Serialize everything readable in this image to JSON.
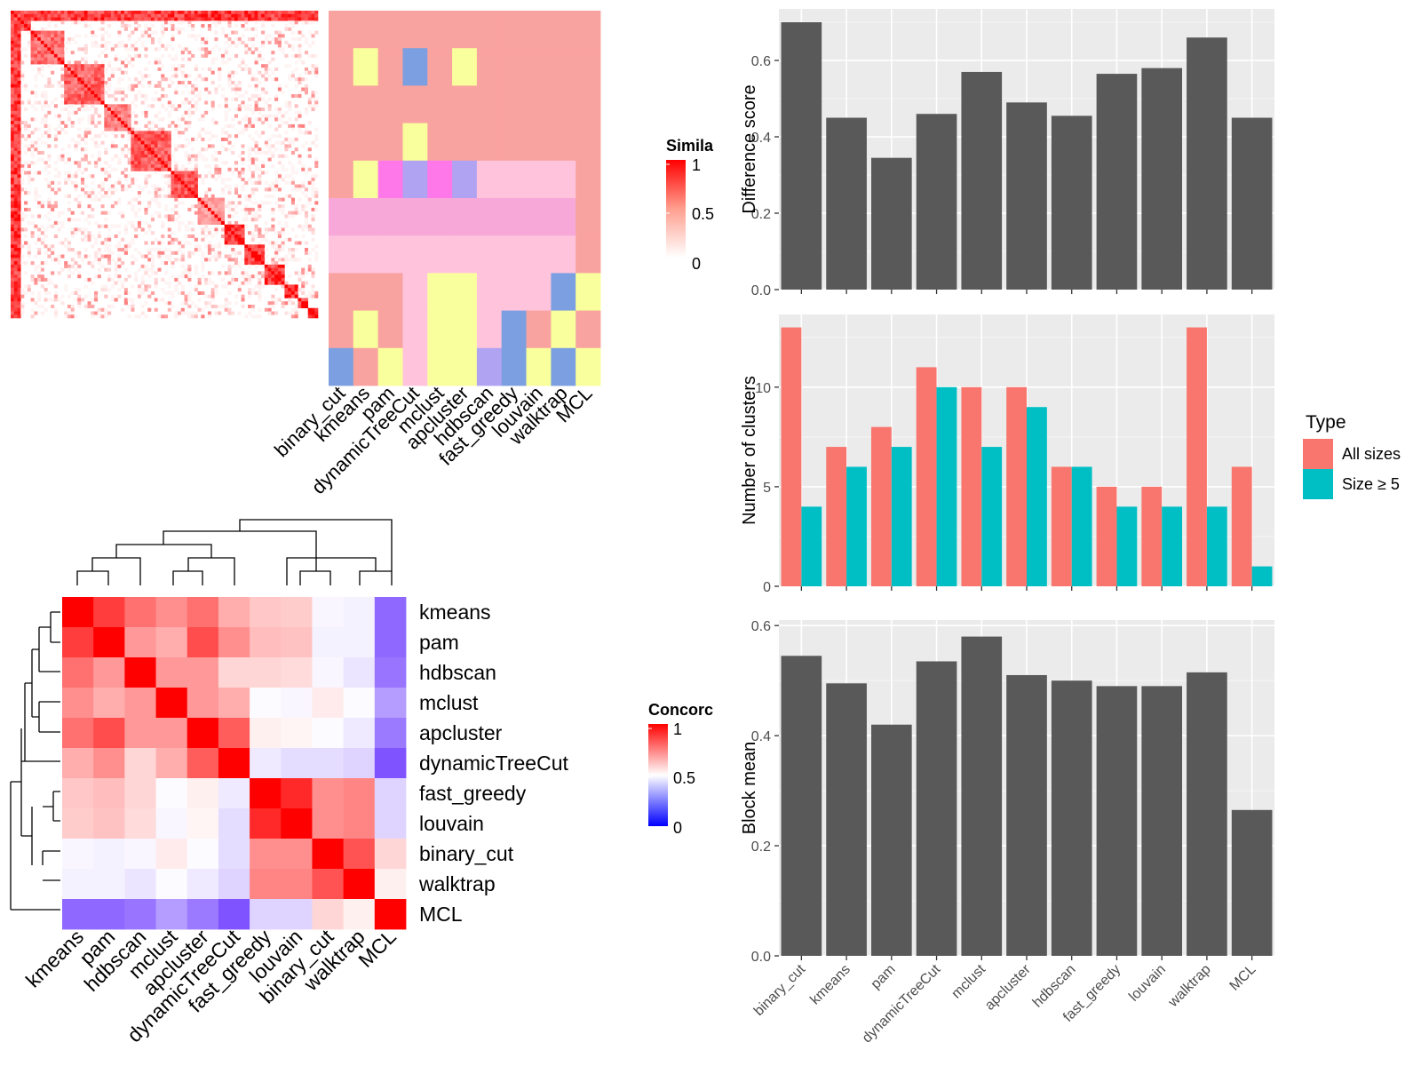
{
  "methods_x": [
    "binary_cut",
    "kmeans",
    "pam",
    "dynamicTreeCut",
    "mclust",
    "apcluster",
    "hdbscan",
    "fast_greedy",
    "louvain",
    "walktrap",
    "MCL"
  ],
  "similarity_heatmap": {
    "legend_title": "Simila",
    "legend_ticks": [
      "1",
      "0.5",
      "0"
    ],
    "column_labels": [
      "binary_cut",
      "kmeans",
      "pam",
      "dynamicTreeCut",
      "mclust",
      "apcluster",
      "hdbscan",
      "fast_greedy",
      "louvain",
      "walktrap",
      "MCL"
    ],
    "colors": {
      "high": "#ff0000",
      "mid": "#ff9f8f",
      "low": "#ffffff"
    }
  },
  "concordance_heatmap": {
    "legend_title": "Concorc",
    "legend_ticks": [
      "1",
      "0.5",
      "0"
    ],
    "row_labels": [
      "kmeans",
      "pam",
      "hdbscan",
      "mclust",
      "apcluster",
      "dynamicTreeCut",
      "fast_greedy",
      "louvain",
      "binary_cut",
      "walktrap",
      "MCL"
    ],
    "column_labels": [
      "kmeans",
      "pam",
      "hdbscan",
      "mclust",
      "apcluster",
      "dynamicTreeCut",
      "fast_greedy",
      "louvain",
      "binary_cut",
      "walktrap",
      "MCL"
    ],
    "colors": {
      "high": "#ff0000",
      "mid": "#ffffff",
      "low": "#0000ff"
    }
  },
  "chart_data": [
    {
      "type": "bar",
      "categories": [
        "binary_cut",
        "kmeans",
        "pam",
        "dynamicTreeCut",
        "mclust",
        "apcluster",
        "hdbscan",
        "fast_greedy",
        "louvain",
        "walktrap",
        "MCL"
      ],
      "values": [
        0.7,
        0.45,
        0.345,
        0.46,
        0.57,
        0.49,
        0.455,
        0.565,
        0.58,
        0.66,
        0.45
      ],
      "ylabel": "Difference score",
      "yticks": [
        "0.0",
        "0.2",
        "0.4",
        "0.6"
      ],
      "ylim": [
        0,
        0.735
      ],
      "color": "#595959"
    },
    {
      "type": "bar",
      "categories": [
        "binary_cut",
        "kmeans",
        "pam",
        "dynamicTreeCut",
        "mclust",
        "apcluster",
        "hdbscan",
        "fast_greedy",
        "louvain",
        "walktrap",
        "MCL"
      ],
      "series": [
        {
          "name": "All sizes",
          "values": [
            13,
            7,
            8,
            11,
            10,
            10,
            6,
            5,
            5,
            13,
            6
          ],
          "color": "#f8766d"
        },
        {
          "name": "Size ≥ 5",
          "values": [
            4,
            6,
            7,
            10,
            7,
            9,
            6,
            4,
            4,
            4,
            1
          ],
          "color": "#00bfc4"
        }
      ],
      "ylabel": "Number of clusters",
      "yticks": [
        "0",
        "5",
        "10"
      ],
      "ylim": [
        0,
        13.65
      ],
      "legend_title": "Type",
      "legend_position": "right"
    },
    {
      "type": "bar",
      "categories": [
        "binary_cut",
        "kmeans",
        "pam",
        "dynamicTreeCut",
        "mclust",
        "apcluster",
        "hdbscan",
        "fast_greedy",
        "louvain",
        "walktrap",
        "MCL"
      ],
      "values": [
        0.545,
        0.495,
        0.42,
        0.535,
        0.58,
        0.51,
        0.5,
        0.49,
        0.49,
        0.515,
        0.265
      ],
      "ylabel": "Block mean",
      "yticks": [
        "0.0",
        "0.2",
        "0.4",
        "0.6"
      ],
      "ylim": [
        0,
        0.61
      ],
      "color": "#595959"
    }
  ]
}
